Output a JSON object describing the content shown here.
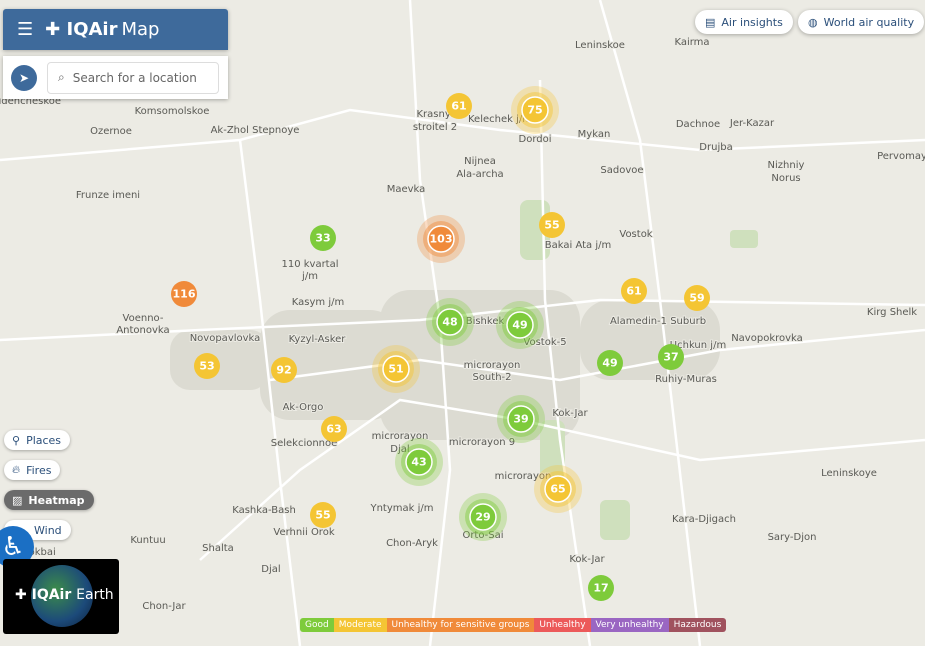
{
  "header": {
    "brand": "IQAir",
    "product": "Map",
    "search_placeholder": "Search for a location"
  },
  "top_buttons": [
    "Air insights",
    "World air quality"
  ],
  "layer_toggles": [
    "Places",
    "Fires",
    "Heatmap",
    "Wind"
  ],
  "earth_widget": {
    "brand": "IQAir",
    "label": "Earth"
  },
  "places": [
    "Leninskoe",
    "Kairma",
    "udencheskoe",
    "Komsomolskoe",
    "Ozernoe",
    "Ak-Zhol Stepnoye",
    "Krasnyi",
    "stroitel 2",
    "Kelechek j/m",
    "Dordoi",
    "Mykan",
    "Dachnoe",
    "Jer-Kazar",
    "Drujba",
    "Nizhniy",
    "Norus",
    "Pervomay",
    "Sadovoe",
    "Nijnea",
    "Ala-archa",
    "Maevka",
    "Frunze imeni",
    "Vostok",
    "Bakai Ata j/m",
    "110 kvartal",
    "j/m",
    "Kasym j/m",
    "Alamedin-1 Suburb",
    "Kirg Shelk",
    "Voenno-",
    "Antonovka",
    "Novopavlovka",
    "Kyzyl-Asker",
    "Bishkek",
    "Vostok-5",
    "Uchkun j/m",
    "Navopokrovka",
    "microrayon",
    "South-2",
    "Ruhiy-Muras",
    "Ak-Orgo",
    "Kok-Jar",
    "Selekcionnoe",
    "microrayon",
    "Djal",
    "microrayon 9",
    "Leninskoye",
    "microrayon",
    "Kashka-Bash",
    "Yntymak j/m",
    "Verhnii Orok",
    "Kara-Djigach",
    "Orto-Sai",
    "Chon-Aryk",
    "Sary-Djon",
    "Kuntuu",
    "Shalta",
    "Kok-Jar",
    "Tokbai",
    "Djal",
    "Chon-Jar"
  ],
  "markers": [
    {
      "value": 61,
      "color": "#f4c534"
    },
    {
      "value": 75,
      "color": "#f4c534"
    },
    {
      "value": 33,
      "color": "#7ecb3b"
    },
    {
      "value": 103,
      "color": "#f08a3a"
    },
    {
      "value": 55,
      "color": "#f4c534"
    },
    {
      "value": 116,
      "color": "#f08a3a"
    },
    {
      "value": 61,
      "color": "#f4c534"
    },
    {
      "value": 59,
      "color": "#f4c534"
    },
    {
      "value": 48,
      "color": "#7ecb3b"
    },
    {
      "value": 49,
      "color": "#7ecb3b"
    },
    {
      "value": 53,
      "color": "#f4c534"
    },
    {
      "value": 92,
      "color": "#f4c534"
    },
    {
      "value": 51,
      "color": "#f4c534"
    },
    {
      "value": 49,
      "color": "#7ecb3b"
    },
    {
      "value": 37,
      "color": "#7ecb3b"
    },
    {
      "value": 63,
      "color": "#f4c534"
    },
    {
      "value": 39,
      "color": "#7ecb3b"
    },
    {
      "value": 43,
      "color": "#7ecb3b"
    },
    {
      "value": 65,
      "color": "#f4c534"
    },
    {
      "value": 29,
      "color": "#7ecb3b"
    },
    {
      "value": 55,
      "color": "#f4c534"
    },
    {
      "value": 17,
      "color": "#7ecb3b"
    }
  ],
  "legend": [
    {
      "label": "Good",
      "color": "#7ecb3b"
    },
    {
      "label": "Moderate",
      "color": "#f4c534"
    },
    {
      "label": "Unhealthy for sensitive groups",
      "color": "#f08a3a"
    },
    {
      "label": "Unhealthy",
      "color": "#ec5a5a"
    },
    {
      "label": "Very unhealthy",
      "color": "#9a66c2"
    },
    {
      "label": "Hazardous",
      "color": "#a0525e"
    }
  ]
}
